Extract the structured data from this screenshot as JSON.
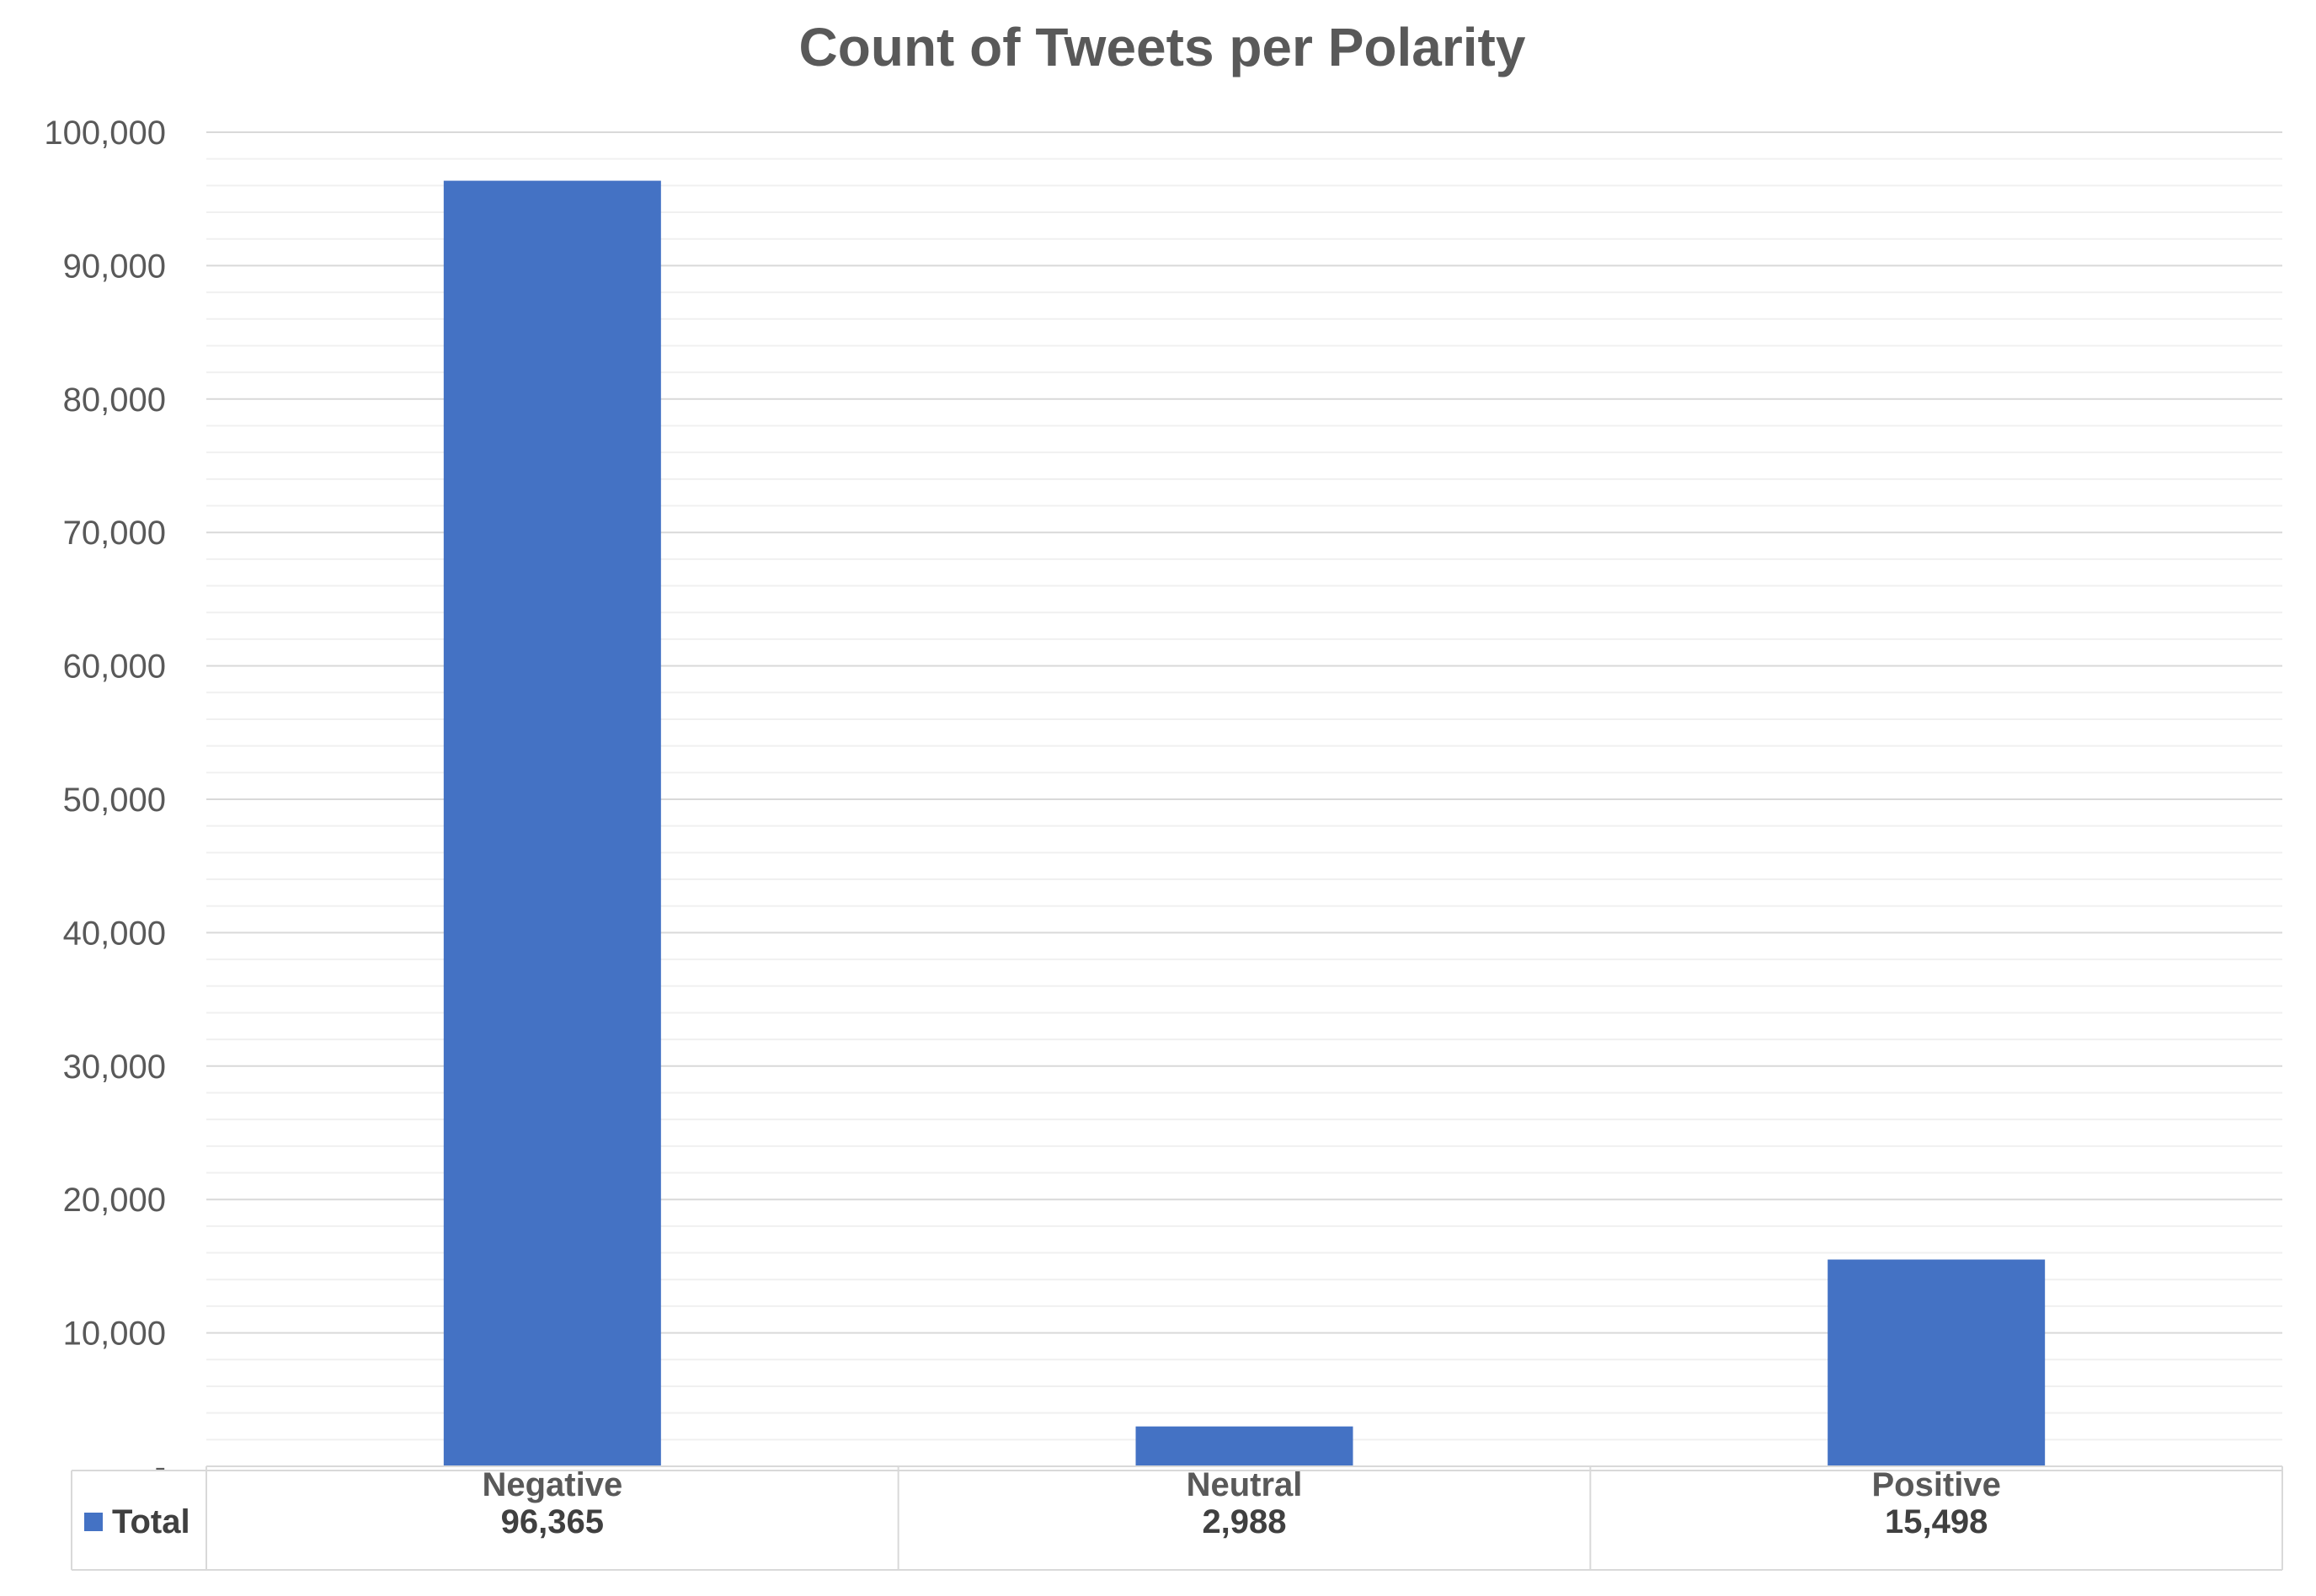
{
  "chart_data": {
    "type": "bar",
    "title": "Count of Tweets per Polarity",
    "categories": [
      "Negative",
      "Neutral",
      "Positive"
    ],
    "series": [
      {
        "name": "Total",
        "values": [
          96365,
          2988,
          15498
        ],
        "labels": [
          "96,365",
          "2,988",
          "15,498"
        ],
        "color": "#4472C4"
      }
    ],
    "yticks": [
      "-",
      "10,000",
      "20,000",
      "30,000",
      "40,000",
      "50,000",
      "60,000",
      "70,000",
      "80,000",
      "90,000",
      "100,000"
    ],
    "ylim": [
      0,
      100000
    ],
    "major_step": 10000,
    "minor_step": 2000,
    "grid": true,
    "data_table": true
  }
}
